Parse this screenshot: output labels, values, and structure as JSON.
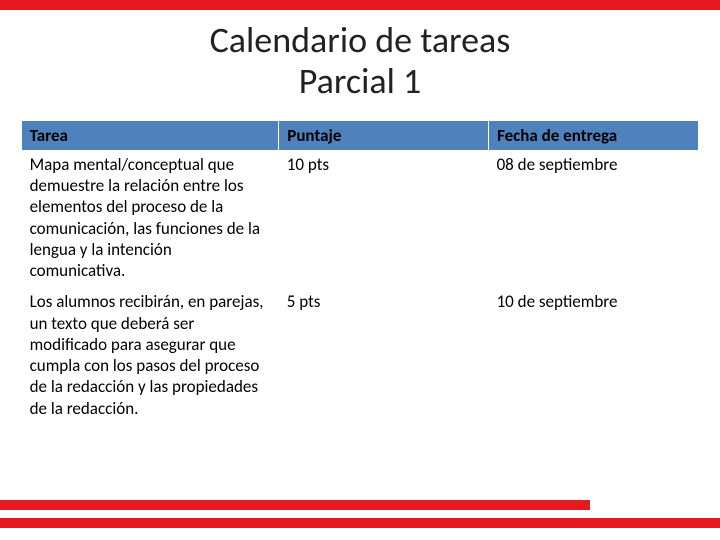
{
  "colors": {
    "accent": "#e41a1c",
    "header_bg": "#4f81bd",
    "header_text": "#000000",
    "body_text": "#000000",
    "bg": "#ffffff"
  },
  "title": {
    "line1": "Calendario de tareas",
    "line2": "Parcial 1"
  },
  "table": {
    "columns": [
      "Tarea",
      "Puntaje",
      "Fecha de entrega"
    ],
    "rows": [
      {
        "tarea": "Mapa mental/conceptual que demuestre la relación entre los elementos del proceso de la comunicación, las funciones de la lengua y la intención comunicativa.",
        "puntaje": "10 pts",
        "fecha": "08 de septiembre"
      },
      {
        "tarea": "Los alumnos recibirán, en parejas, un texto que deberá ser modificado para asegurar que cumpla con los pasos del proceso de la redacción y las propiedades de la redacción.",
        "puntaje": "5 pts",
        "fecha": "10 de septiembre"
      }
    ]
  }
}
